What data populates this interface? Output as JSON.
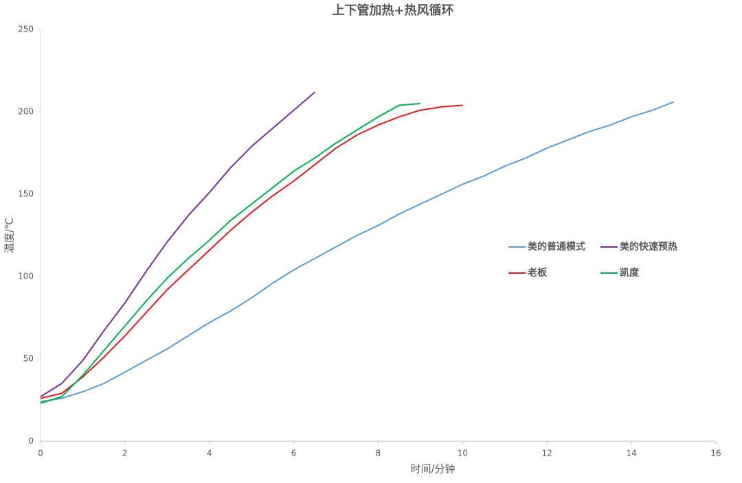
{
  "chart_data": {
    "type": "line",
    "title": "上下管加热+热风循环",
    "x_label": "时间/分钟",
    "y_label": "温度/℃",
    "xlim": [
      0,
      16
    ],
    "xticks": [
      0,
      2,
      4,
      6,
      8,
      10,
      12,
      14,
      16
    ],
    "ylim": [
      0,
      250
    ],
    "yticks": [
      0,
      50,
      100,
      150,
      200,
      250
    ],
    "grid": false,
    "legend": "right",
    "series": [
      {
        "name": "美的普通模式",
        "color": "#5b9bd5",
        "x": [
          0,
          0.5,
          1,
          1.5,
          2,
          2.5,
          3,
          3.5,
          4,
          4.5,
          5,
          5.5,
          6,
          6.5,
          7,
          7.5,
          8,
          8.5,
          9,
          9.5,
          10,
          10.5,
          11,
          11.5,
          12,
          12.5,
          13,
          13.5,
          14,
          14.5,
          15
        ],
        "values": [
          24,
          26,
          30,
          35,
          42,
          49,
          56,
          64,
          72,
          79,
          87,
          96,
          104,
          111,
          118,
          125,
          131,
          138,
          144,
          150,
          156,
          161,
          167,
          172,
          178,
          183,
          188,
          192,
          197,
          201,
          206
        ]
      },
      {
        "name": "美的快速预热",
        "color": "#7030a0",
        "x": [
          0,
          0.5,
          1,
          1.5,
          2,
          2.5,
          3,
          3.5,
          4,
          4.5,
          5,
          5.5,
          6,
          6.5
        ],
        "values": [
          27,
          35,
          49,
          67,
          84,
          103,
          121,
          137,
          151,
          166,
          179,
          190,
          201,
          212
        ]
      },
      {
        "name": "老板",
        "color": "#e41a1c",
        "x": [
          0,
          0.5,
          1,
          1.5,
          2,
          2.5,
          3,
          3.5,
          4,
          4.5,
          5,
          5.5,
          6,
          6.5,
          7,
          7.5,
          8,
          8.5,
          9,
          9.5,
          10
        ],
        "values": [
          26,
          29,
          39,
          51,
          64,
          78,
          92,
          104,
          116,
          128,
          139,
          149,
          158,
          168,
          178,
          186,
          192,
          197,
          201,
          203,
          204
        ]
      },
      {
        "name": "凯度",
        "color": "#00b050",
        "x": [
          0,
          0.5,
          1,
          1.5,
          2,
          2.5,
          3,
          3.5,
          4,
          4.5,
          5,
          5.5,
          6,
          6.5,
          7,
          7.5,
          8,
          8.5,
          9
        ],
        "values": [
          23,
          27,
          40,
          55,
          70,
          85,
          99,
          111,
          122,
          134,
          144,
          154,
          164,
          172,
          181,
          189,
          197,
          204,
          205
        ]
      }
    ]
  }
}
